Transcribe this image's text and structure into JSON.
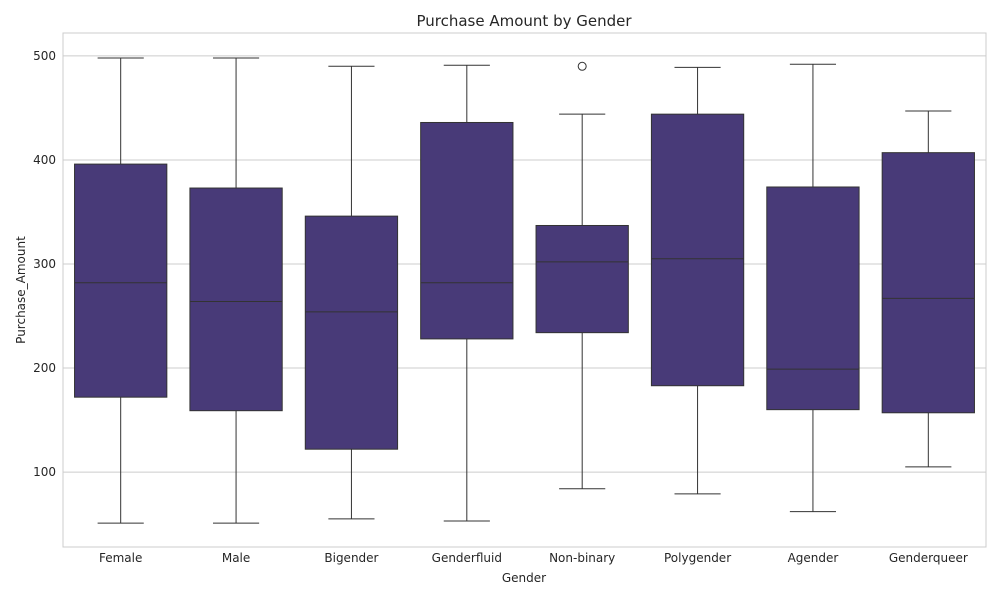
{
  "chart_data": {
    "type": "box",
    "title": "Purchase Amount by Gender",
    "xlabel": "Gender",
    "ylabel": "Purchase_Amount",
    "ylim": [
      28,
      522
    ],
    "yticks": [
      100,
      200,
      300,
      400,
      500
    ],
    "grid": true,
    "box_color": "#483a78",
    "line_color": "#333333",
    "categories": [
      "Female",
      "Male",
      "Bigender",
      "Genderfluid",
      "Non-binary",
      "Polygender",
      "Agender",
      "Genderqueer"
    ],
    "boxes": [
      {
        "category": "Female",
        "whisker_low": 51,
        "q1": 172,
        "median": 282,
        "q3": 396,
        "whisker_high": 498,
        "outliers": []
      },
      {
        "category": "Male",
        "whisker_low": 51,
        "q1": 159,
        "median": 264,
        "q3": 373,
        "whisker_high": 498,
        "outliers": []
      },
      {
        "category": "Bigender",
        "whisker_low": 55,
        "q1": 122,
        "median": 254,
        "q3": 346,
        "whisker_high": 490,
        "outliers": []
      },
      {
        "category": "Genderfluid",
        "whisker_low": 53,
        "q1": 228,
        "median": 282,
        "q3": 436,
        "whisker_high": 491,
        "outliers": []
      },
      {
        "category": "Non-binary",
        "whisker_low": 84,
        "q1": 234,
        "median": 302,
        "q3": 337,
        "whisker_high": 444,
        "outliers": [
          490
        ]
      },
      {
        "category": "Polygender",
        "whisker_low": 79,
        "q1": 183,
        "median": 305,
        "q3": 444,
        "whisker_high": 489,
        "outliers": []
      },
      {
        "category": "Agender",
        "whisker_low": 62,
        "q1": 160,
        "median": 199,
        "q3": 374,
        "whisker_high": 492,
        "outliers": []
      },
      {
        "category": "Genderqueer",
        "whisker_low": 105,
        "q1": 157,
        "median": 267,
        "q3": 407,
        "whisker_high": 447,
        "outliers": []
      }
    ]
  }
}
